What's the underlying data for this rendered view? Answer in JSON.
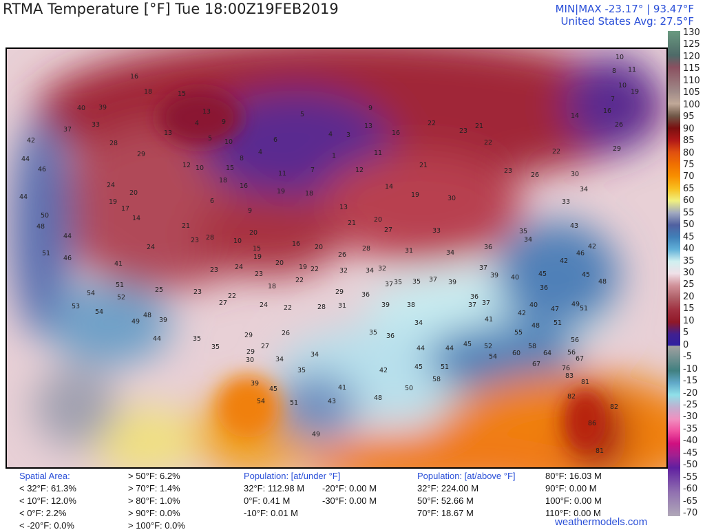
{
  "title": "RTMA Temperature [°F]  Tue 18:00Z19FEB2019",
  "minmax": "MIN|MAX -23.17°  |  93.47°F",
  "us_avg": "United States Avg: 27.5°F",
  "colorbar": {
    "unit": "°F",
    "ticks": [
      "130",
      "125",
      "120",
      "115",
      "110",
      "105",
      "100",
      "95",
      "90",
      "85",
      "80",
      "75",
      "70",
      "65",
      "60",
      "55",
      "50",
      "45",
      "40",
      "35",
      "30",
      "25",
      "20",
      "15",
      "10",
      "5",
      "0",
      "-5",
      "-10",
      "-15",
      "-20",
      "-25",
      "-30",
      "-35",
      "-40",
      "-45",
      "-50",
      "-55",
      "-60",
      "-65",
      "-70"
    ],
    "stops": [
      [
        130,
        "#6a9a80"
      ],
      [
        120,
        "#4e6a68"
      ],
      [
        115,
        "#8a5060"
      ],
      [
        105,
        "#a08a88"
      ],
      [
        100,
        "#c0a898"
      ],
      [
        95,
        "#705848"
      ],
      [
        90,
        "#7a1010"
      ],
      [
        85,
        "#b01818"
      ],
      [
        80,
        "#e05010"
      ],
      [
        75,
        "#f07000"
      ],
      [
        70,
        "#f89000"
      ],
      [
        65,
        "#f8c020"
      ],
      [
        60,
        "#f0f080"
      ],
      [
        55,
        "#a0a8c0"
      ],
      [
        50,
        "#5060a0"
      ],
      [
        45,
        "#4080b8"
      ],
      [
        40,
        "#60b0d8"
      ],
      [
        35,
        "#d0f0f0"
      ],
      [
        30,
        "#f0e0e8"
      ],
      [
        25,
        "#d09098"
      ],
      [
        20,
        "#b06068"
      ],
      [
        15,
        "#a03040"
      ],
      [
        10,
        "#901828"
      ],
      [
        5,
        "#402090"
      ],
      [
        0.5,
        "#3020a0"
      ],
      [
        0,
        "#a0a0a0"
      ],
      [
        -10,
        "#408080"
      ],
      [
        -15,
        "#60a8c8"
      ],
      [
        -20,
        "#90e0e8"
      ],
      [
        -25,
        "#c0b0d0"
      ],
      [
        -30,
        "#f090c0"
      ],
      [
        -35,
        "#f050a0"
      ],
      [
        -40,
        "#d01080"
      ],
      [
        -45,
        "#a02090"
      ],
      [
        -50,
        "#6020a0"
      ],
      [
        -60,
        "#9070b0"
      ],
      [
        -70,
        "#b0a8b8"
      ]
    ]
  },
  "stats": {
    "spatial_header": "Spatial Area:",
    "spatial_left": [
      "< 32°F: 61.3%",
      "< 10°F: 12.0%",
      "< 0°F: 2.2%",
      "< -20°F: 0.0%"
    ],
    "spatial_right": [
      "> 50°F: 6.2%",
      "> 70°F: 1.4%",
      "> 80°F: 1.0%",
      "> 90°F: 0.0%",
      "> 100°F: 0.0%"
    ],
    "under_header": "Population: [at/under °F]",
    "under_a": [
      "32°F: 112.98 M",
      "0°F: 0.41 M",
      "-10°F: 0.01 M"
    ],
    "under_b": [
      "-20°F: 0.00 M",
      "-30°F: 0.00 M"
    ],
    "above_header": "Population: [at/above °F]",
    "above_a": [
      "32°F: 224.00 M",
      "50°F: 52.66 M",
      "70°F: 18.67 M"
    ],
    "above_b": [
      "80°F: 16.03 M",
      "90°F: 0.00 M",
      "100°F: 0.00 M",
      "110°F: 0.00 M"
    ]
  },
  "credit": "weathermodels.com",
  "stations": [
    16,
    18,
    15,
    13,
    9,
    4,
    5,
    10,
    8,
    4,
    6,
    5,
    4,
    3,
    1,
    7,
    11,
    12,
    9,
    13,
    16,
    11,
    14,
    19,
    21,
    22,
    23,
    21,
    22,
    23,
    26,
    22,
    30,
    34,
    33,
    10,
    11,
    8,
    10,
    19,
    7,
    16,
    14,
    26,
    29,
    13,
    12,
    10,
    15,
    18,
    16,
    6,
    9,
    19,
    18,
    13,
    21,
    20,
    27,
    30,
    33,
    31,
    34,
    36,
    34,
    43,
    42,
    45,
    48,
    32,
    29,
    31,
    36,
    38,
    34,
    36,
    35,
    39,
    40,
    41,
    48,
    51,
    55,
    58,
    60,
    64,
    67,
    76,
    83,
    81,
    82,
    82,
    86,
    81,
    45,
    42,
    51,
    58,
    50,
    48,
    41,
    43,
    45,
    54,
    51,
    49,
    39,
    35,
    34,
    34,
    30,
    29,
    27,
    29,
    26,
    22,
    24,
    28,
    35,
    35,
    39,
    44,
    49,
    48,
    52,
    54,
    53,
    54,
    46,
    44,
    51,
    48,
    50,
    44,
    46,
    44,
    42,
    37,
    40,
    39,
    33,
    28,
    29,
    24,
    19,
    20,
    17,
    14,
    21,
    24,
    23,
    28,
    10,
    15,
    20,
    19,
    23,
    24,
    23,
    20,
    16,
    20,
    26,
    28,
    19,
    22,
    22,
    18,
    25,
    23,
    22,
    27,
    32,
    34,
    35,
    37,
    39,
    37,
    39,
    42,
    35,
    46,
    41,
    51,
    49,
    51,
    47,
    40,
    42,
    36,
    45,
    37,
    37,
    36,
    35,
    37,
    44,
    44,
    45,
    52,
    54,
    56,
    56,
    67
  ]
}
